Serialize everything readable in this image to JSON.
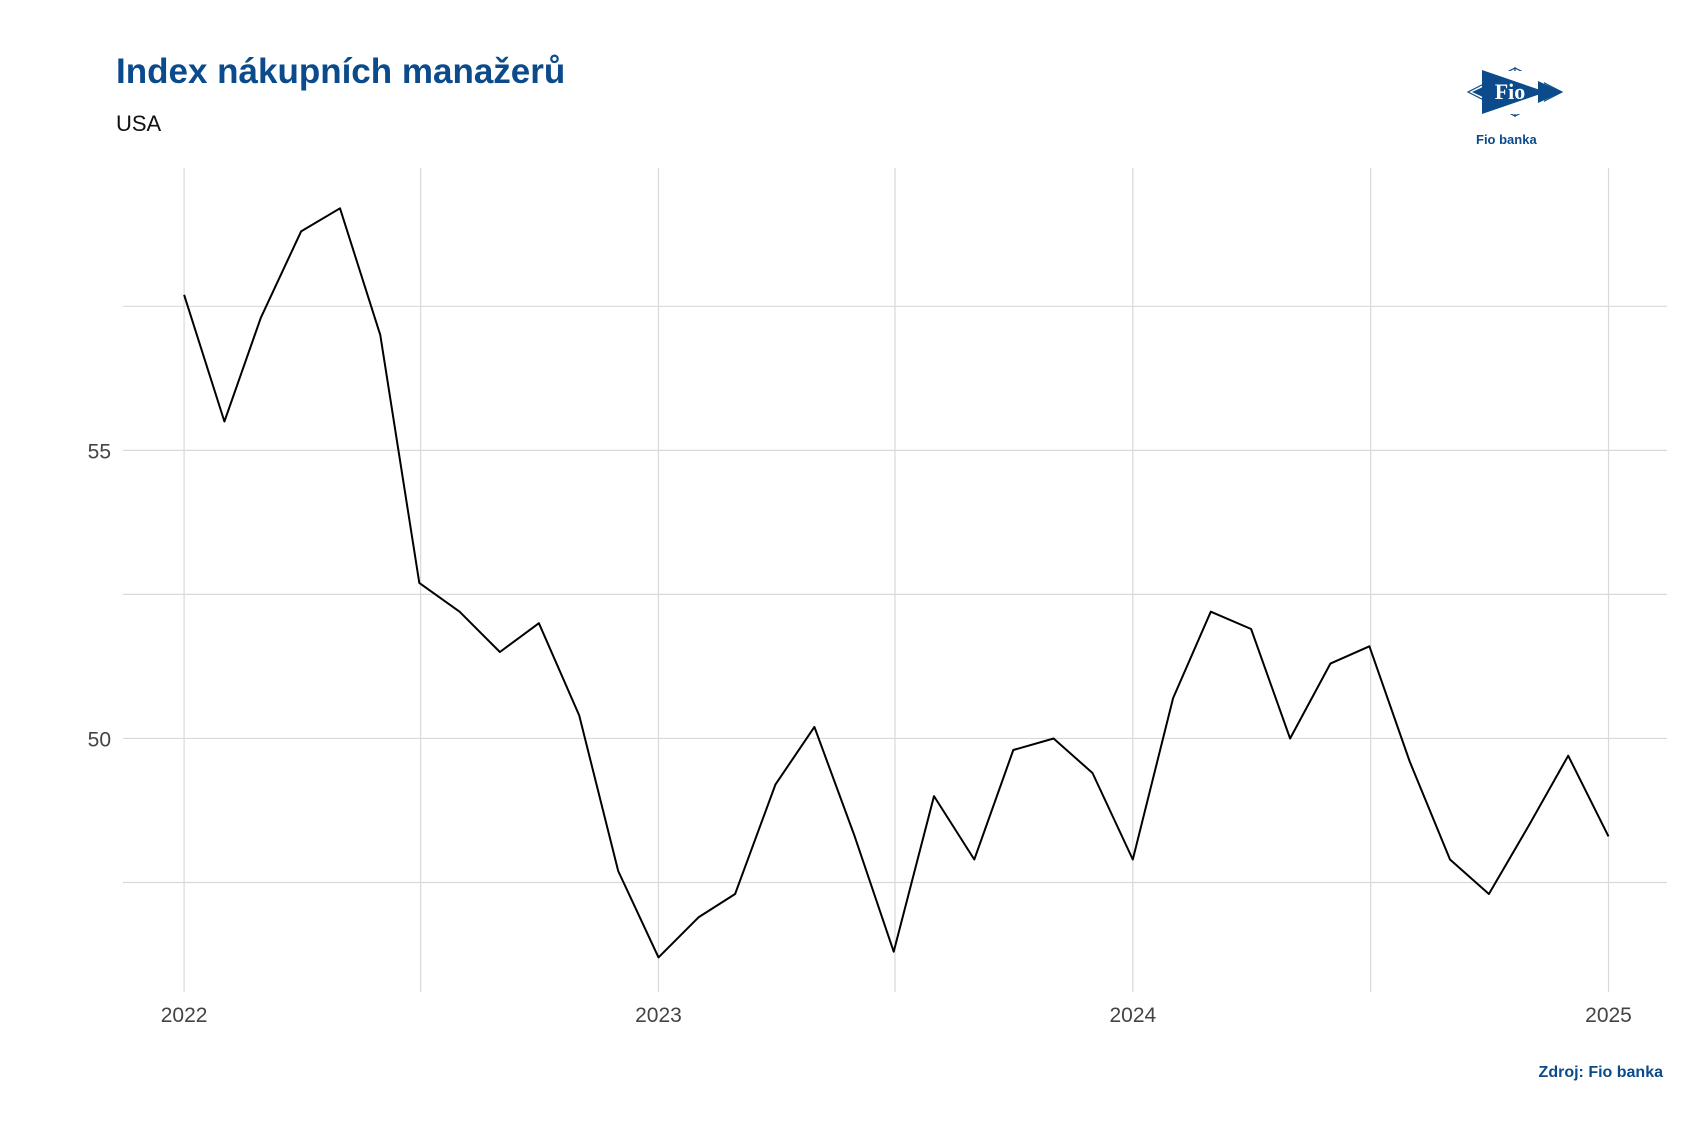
{
  "title": "Index nákupních manažerů",
  "subtitle": "USA",
  "logo": {
    "text": "Fio",
    "caption": "Fio banka"
  },
  "source": "Zdroj: Fio banka",
  "colors": {
    "title": "#0b4a8b",
    "line": "#000000",
    "grid": "#d9d9d9"
  },
  "chart_data": {
    "type": "line",
    "title": "Index nákupních manažerů",
    "subtitle": "USA",
    "xlabel": "",
    "ylabel": "",
    "x_ticks": [
      "2022",
      "2023",
      "2024",
      "2025"
    ],
    "y_ticks": [
      50,
      55
    ],
    "ylim": [
      45.6,
      59.9
    ],
    "xlim": [
      "2021-11-15",
      "2025-02-15"
    ],
    "grid": true,
    "series": [
      {
        "x": [
          "2022-01",
          "2022-02",
          "2022-03",
          "2022-04",
          "2022-05",
          "2022-06",
          "2022-07",
          "2022-08",
          "2022-09",
          "2022-10",
          "2022-11",
          "2022-12",
          "2023-01",
          "2023-02",
          "2023-03",
          "2023-04",
          "2023-05",
          "2023-06",
          "2023-07",
          "2023-08",
          "2023-09",
          "2023-10",
          "2023-11",
          "2023-12",
          "2024-01",
          "2024-02",
          "2024-03",
          "2024-04",
          "2024-05",
          "2024-06",
          "2024-07",
          "2024-08",
          "2024-09",
          "2024-10",
          "2024-11",
          "2024-12",
          "2025-01"
        ],
        "values": [
          57.7,
          55.5,
          57.3,
          58.8,
          59.2,
          57.0,
          52.7,
          52.2,
          51.5,
          52.0,
          50.4,
          47.7,
          46.2,
          46.9,
          47.3,
          49.2,
          50.2,
          48.3,
          46.3,
          49.0,
          47.9,
          49.8,
          50.0,
          49.4,
          47.9,
          50.7,
          52.2,
          51.9,
          50.0,
          51.3,
          51.6,
          49.6,
          47.9,
          47.3,
          48.5,
          49.7,
          48.3
        ]
      }
    ]
  }
}
